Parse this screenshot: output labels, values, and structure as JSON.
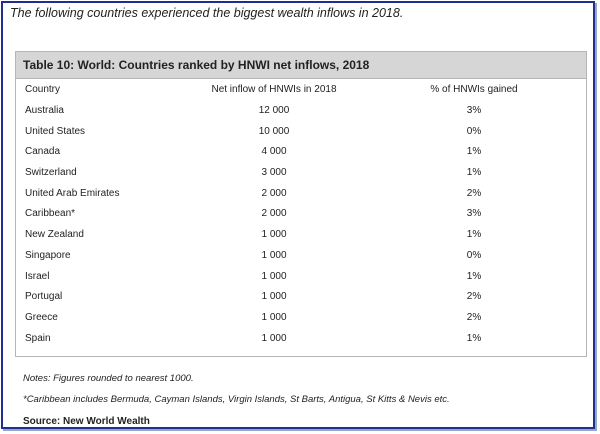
{
  "intro_text": "The following countries experienced the biggest wealth inflows in 2018.",
  "table": {
    "title": "Table 10: World: Countries ranked by HNWI net inflows, 2018",
    "columns": [
      "Country",
      "Net inflow of HNWIs in 2018",
      "% of HNWIs gained"
    ],
    "rows": [
      [
        "Australia",
        "12 000",
        "3%"
      ],
      [
        "United States",
        "10 000",
        "0%"
      ],
      [
        "Canada",
        "4 000",
        "1%"
      ],
      [
        "Switzerland",
        "3 000",
        "1%"
      ],
      [
        "United Arab Emirates",
        "2 000",
        "2%"
      ],
      [
        "Caribbean*",
        "2 000",
        "3%"
      ],
      [
        "New Zealand",
        "1 000",
        "1%"
      ],
      [
        "Singapore",
        "1 000",
        "0%"
      ],
      [
        "Israel",
        "1 000",
        "1%"
      ],
      [
        "Portugal",
        "1 000",
        "2%"
      ],
      [
        "Greece",
        "1 000",
        "2%"
      ],
      [
        "Spain",
        "1 000",
        "1%"
      ]
    ]
  },
  "notes": "Notes: Figures rounded to nearest 1000.",
  "footnote": "*Caribbean includes Bermuda, Cayman Islands, Virgin Islands, St Barts, Antigua, St Kitts & Nevis etc.",
  "source": "Source: New World Wealth",
  "colors": {
    "frame_border": "#1f2f8f",
    "title_bar_bg": "#d6d6d6"
  }
}
